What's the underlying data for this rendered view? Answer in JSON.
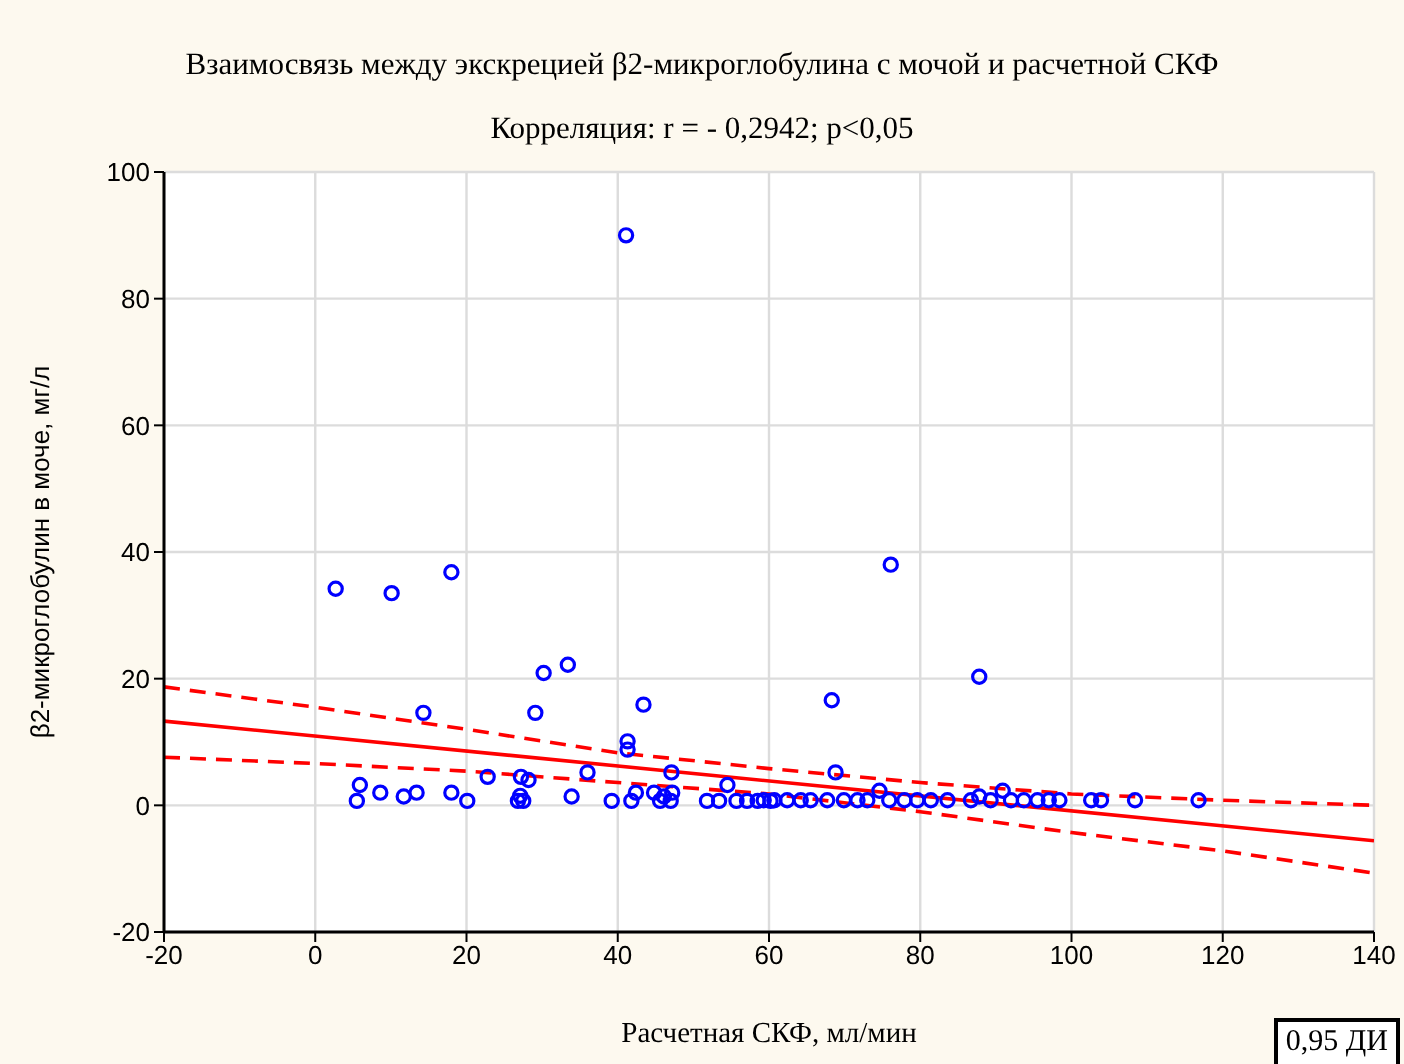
{
  "chart_data": {
    "type": "scatter",
    "title": "Взаимосвязь между экскрецией β2-микроглобулина с мочой и расчетной СКФ",
    "subtitle": "Корреляция: r =  - 0,2942; p<0,05",
    "xlabel": "Расчетная СКФ, мл/мин",
    "ylabel": "β2-микроглобулин в моче, мг/л",
    "xlim": [
      -20,
      140
    ],
    "xticks": [
      -20,
      0,
      20,
      40,
      60,
      80,
      100,
      120,
      140
    ],
    "ylim": [
      -20,
      100
    ],
    "yticks": [
      -20,
      0,
      20,
      40,
      60,
      80,
      100
    ],
    "grid": true,
    "annotations": [
      "0,95 ДИ"
    ],
    "series": [
      {
        "color": "#0000ff",
        "marker": "circle",
        "x": [
          2.7,
          10.1,
          18.0,
          41.1,
          5.5,
          5.9,
          8.6,
          11.7,
          13.4,
          14.3,
          18.0,
          20.1,
          22.8,
          26.8,
          27.5,
          27.1,
          27.2,
          28.2,
          29.1,
          30.2,
          33.4,
          33.9,
          36.0,
          39.2,
          41.3,
          41.3,
          41.8,
          42.4,
          43.4,
          44.8,
          45.6,
          46.1,
          47.0,
          47.2,
          47.1,
          51.8,
          53.4,
          54.5,
          55.7,
          57.1,
          58.5,
          59.3,
          60.2,
          60.7,
          62.4,
          64.2,
          65.5,
          67.7,
          68.8,
          68.3,
          69.9,
          71.7,
          73.0,
          74.6,
          75.9,
          77.9,
          79.6,
          81.4,
          83.6,
          76.1,
          87.8,
          86.7,
          87.8,
          89.3,
          90.9,
          92.0,
          93.7,
          95.5,
          97.0,
          98.4,
          102.6,
          103.9,
          108.4,
          116.8
        ],
        "values": [
          34.2,
          33.5,
          36.8,
          90,
          0.7,
          3.2,
          2.0,
          1.4,
          2.0,
          14.6,
          2.0,
          0.7,
          4.5,
          0.7,
          0.7,
          1.5,
          4.5,
          4.0,
          14.6,
          20.9,
          22.2,
          1.4,
          5.2,
          0.7,
          10.1,
          8.8,
          0.7,
          2.0,
          15.9,
          2.0,
          0.7,
          1.4,
          0.7,
          2.0,
          5.2,
          0.7,
          0.7,
          3.2,
          0.7,
          0.7,
          0.7,
          0.8,
          0.7,
          0.8,
          0.8,
          0.8,
          0.8,
          0.8,
          5.2,
          16.6,
          0.8,
          0.8,
          0.8,
          2.3,
          0.8,
          0.8,
          0.8,
          0.8,
          0.8,
          38.0,
          20.3,
          0.8,
          1.4,
          0.8,
          2.3,
          0.8,
          0.8,
          0.8,
          0.8,
          0.8,
          0.8,
          0.8,
          0.8,
          0.8
        ]
      },
      {
        "type": "line",
        "color": "#ff0000",
        "line_style": "solid",
        "x": [
          -20,
          140
        ],
        "values": [
          13.3,
          -5.6
        ]
      },
      {
        "type": "line",
        "color": "#ff0000",
        "line_style": "dashed",
        "x": [
          -20,
          0,
          20,
          40,
          60,
          80,
          100,
          120,
          140
        ],
        "values": [
          18.7,
          15.5,
          12.0,
          8.3,
          5.8,
          3.6,
          1.8,
          0.8,
          0.0
        ]
      },
      {
        "type": "line",
        "color": "#ff0000",
        "line_style": "dashed",
        "x": [
          -20,
          0,
          20,
          40,
          60,
          80,
          100,
          120,
          140
        ],
        "values": [
          7.6,
          6.6,
          5.4,
          3.6,
          1.8,
          -1.0,
          -4.3,
          -7.2,
          -10.7
        ]
      }
    ]
  }
}
